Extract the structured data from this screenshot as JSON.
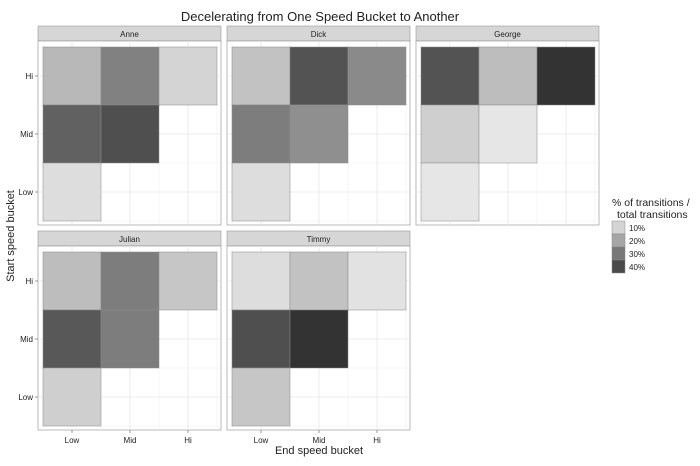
{
  "chart_data": {
    "type": "heatmap",
    "title": "Decelerating from One Speed Bucket to Another",
    "xlabel": "End speed bucket",
    "ylabel": "Start speed bucket",
    "x_categories": [
      "Low",
      "Mid",
      "Hi"
    ],
    "y_categories": [
      "Hi",
      "Mid",
      "Low"
    ],
    "legend": {
      "title_line1": "% of transitions /",
      "title_line2": "total transitions",
      "entries": [
        {
          "label": "10%",
          "value": 10
        },
        {
          "label": "20%",
          "value": 20
        },
        {
          "label": "30%",
          "value": 30
        },
        {
          "label": "40%",
          "value": 40
        }
      ],
      "position": "right"
    },
    "color_scale": {
      "low_color": "#ebebeb",
      "high_color": "#333333",
      "min": 5,
      "max": 45
    },
    "panels": [
      {
        "name": "Anne",
        "cells": [
          {
            "start": "Hi",
            "end": "Low",
            "value": 16
          },
          {
            "start": "Hi",
            "end": "Mid",
            "value": 28
          },
          {
            "start": "Hi",
            "end": "Hi",
            "value": 10
          },
          {
            "start": "Mid",
            "end": "Low",
            "value": 35
          },
          {
            "start": "Mid",
            "end": "Mid",
            "value": 39
          },
          {
            "start": "Low",
            "end": "Low",
            "value": 8
          }
        ]
      },
      {
        "name": "Dick",
        "cells": [
          {
            "start": "Hi",
            "end": "Low",
            "value": 14
          },
          {
            "start": "Hi",
            "end": "Mid",
            "value": 38
          },
          {
            "start": "Hi",
            "end": "Hi",
            "value": 26
          },
          {
            "start": "Mid",
            "end": "Low",
            "value": 29
          },
          {
            "start": "Mid",
            "end": "Mid",
            "value": 25
          },
          {
            "start": "Low",
            "end": "Low",
            "value": 8
          }
        ]
      },
      {
        "name": "George",
        "cells": [
          {
            "start": "Hi",
            "end": "Low",
            "value": 38
          },
          {
            "start": "Hi",
            "end": "Mid",
            "value": 15
          },
          {
            "start": "Hi",
            "end": "Hi",
            "value": 45
          },
          {
            "start": "Mid",
            "end": "Low",
            "value": 11
          },
          {
            "start": "Mid",
            "end": "Mid",
            "value": 6
          },
          {
            "start": "Low",
            "end": "Low",
            "value": 6
          }
        ]
      },
      {
        "name": "Julian",
        "cells": [
          {
            "start": "Hi",
            "end": "Low",
            "value": 15
          },
          {
            "start": "Hi",
            "end": "Mid",
            "value": 29
          },
          {
            "start": "Hi",
            "end": "Hi",
            "value": 13
          },
          {
            "start": "Mid",
            "end": "Low",
            "value": 37
          },
          {
            "start": "Mid",
            "end": "Mid",
            "value": 29
          },
          {
            "start": "Low",
            "end": "Low",
            "value": 11
          }
        ]
      },
      {
        "name": "Timmy",
        "cells": [
          {
            "start": "Hi",
            "end": "Low",
            "value": 8
          },
          {
            "start": "Hi",
            "end": "Mid",
            "value": 14
          },
          {
            "start": "Hi",
            "end": "Hi",
            "value": 7
          },
          {
            "start": "Mid",
            "end": "Low",
            "value": 39
          },
          {
            "start": "Mid",
            "end": "Mid",
            "value": 45
          },
          {
            "start": "Low",
            "end": "Low",
            "value": 13
          }
        ]
      }
    ]
  }
}
